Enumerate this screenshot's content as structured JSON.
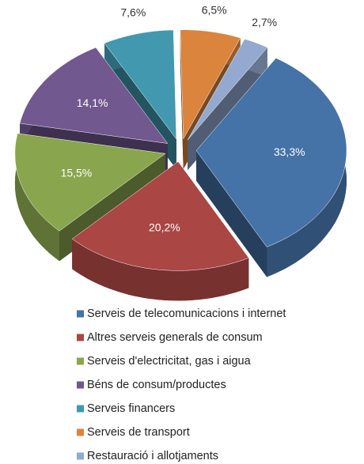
{
  "chart_data": {
    "type": "pie",
    "categories": [
      "Serveis de telecomunicacions i internet",
      "Altres serveis generals de consum",
      "Serveis d'electricitat, gas i aigua",
      "Béns de consum/productes",
      "Serveis financers",
      "Serveis de transport",
      "Restauració i allotjaments"
    ],
    "values": [
      33.3,
      20.2,
      15.5,
      14.1,
      7.6,
      6.5,
      2.7
    ],
    "value_labels": [
      "33,3%",
      "20,2%",
      "15,5%",
      "14,1%",
      "7,6%",
      "6,5%",
      "2,7%"
    ],
    "colors": [
      "#4572a7",
      "#aa4643",
      "#89a54e",
      "#71588f",
      "#4198af",
      "#db843d",
      "#93a9cf"
    ],
    "legend": "bottom"
  }
}
